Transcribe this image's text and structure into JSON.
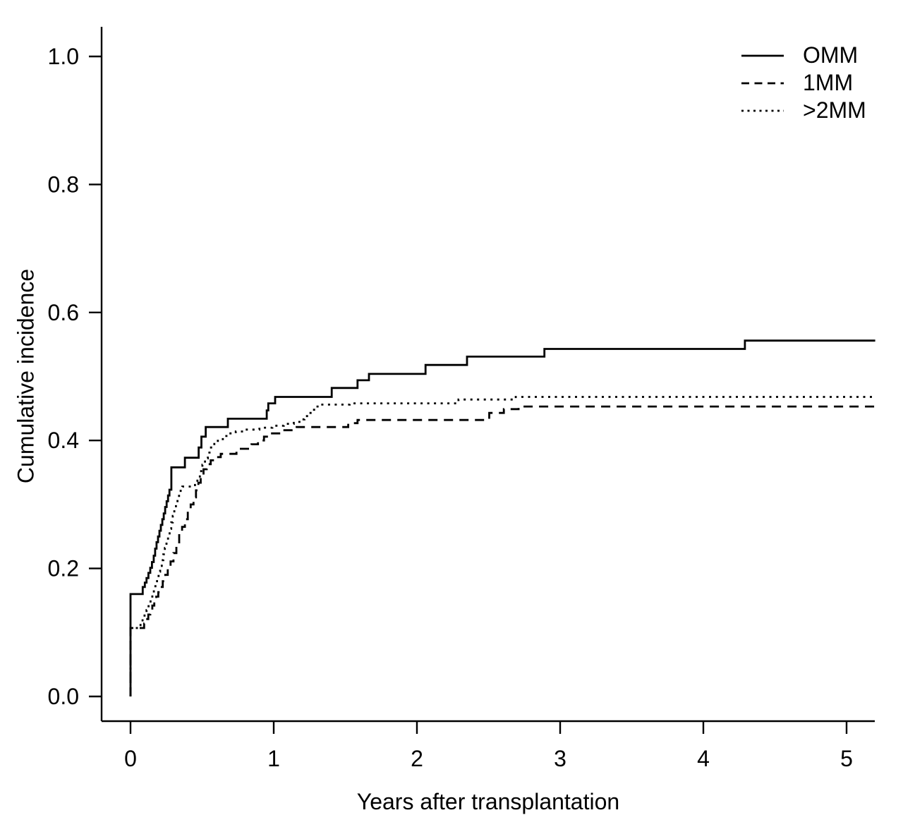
{
  "chart_data": {
    "type": "line",
    "subtype": "step",
    "title": "",
    "xlabel": "Years after transplantation",
    "ylabel": "Cumulative incidence",
    "xlim": [
      0,
      5.2
    ],
    "ylim": [
      0,
      1.0
    ],
    "xticks": [
      "0",
      "1",
      "2",
      "3",
      "4",
      "5"
    ],
    "yticks": [
      "0.0",
      "0.2",
      "0.4",
      "0.6",
      "0.8",
      "1.0"
    ],
    "grid": false,
    "background_color": "#ffffff",
    "line_color": "#000000",
    "legend": {
      "position": "top-right",
      "entries": [
        {
          "label": "OMM",
          "line_style": "solid"
        },
        {
          "label": "1MM",
          "line_style": "dashed"
        },
        {
          "label": ">2MM",
          "line_style": "dotted"
        }
      ]
    },
    "series": [
      {
        "name": "OMM",
        "line_style": "solid",
        "color": "#000000",
        "points": [
          [
            0,
            0
          ],
          [
            0,
            0.16
          ],
          [
            0.085,
            0.171
          ],
          [
            0.1,
            0.178
          ],
          [
            0.112,
            0.185
          ],
          [
            0.125,
            0.193
          ],
          [
            0.138,
            0.201
          ],
          [
            0.15,
            0.21
          ],
          [
            0.162,
            0.22
          ],
          [
            0.172,
            0.231
          ],
          [
            0.182,
            0.241
          ],
          [
            0.192,
            0.25
          ],
          [
            0.202,
            0.259
          ],
          [
            0.212,
            0.268
          ],
          [
            0.222,
            0.277
          ],
          [
            0.232,
            0.286
          ],
          [
            0.242,
            0.296
          ],
          [
            0.252,
            0.305
          ],
          [
            0.262,
            0.314
          ],
          [
            0.272,
            0.323
          ],
          [
            0.285,
            0.358
          ],
          [
            0.38,
            0.373
          ],
          [
            0.476,
            0.389
          ],
          [
            0.495,
            0.406
          ],
          [
            0.525,
            0.421
          ],
          [
            0.68,
            0.434
          ],
          [
            0.951,
            0.447
          ],
          [
            0.962,
            0.458
          ],
          [
            1.01,
            0.468
          ],
          [
            1.405,
            0.482
          ],
          [
            1.585,
            0.494
          ],
          [
            1.665,
            0.504
          ],
          [
            2.06,
            0.518
          ],
          [
            2.35,
            0.531
          ],
          [
            2.89,
            0.543
          ],
          [
            4.29,
            0.556
          ],
          [
            5.2,
            0.556
          ]
        ]
      },
      {
        "name": "1MM",
        "line_style": "dashed",
        "color": "#000000",
        "points": [
          [
            0,
            0
          ],
          [
            0,
            0.107
          ],
          [
            0.095,
            0.114
          ],
          [
            0.11,
            0.121
          ],
          [
            0.124,
            0.128
          ],
          [
            0.138,
            0.135
          ],
          [
            0.152,
            0.142
          ],
          [
            0.166,
            0.149
          ],
          [
            0.18,
            0.156
          ],
          [
            0.194,
            0.163
          ],
          [
            0.208,
            0.171
          ],
          [
            0.225,
            0.18
          ],
          [
            0.243,
            0.19
          ],
          [
            0.26,
            0.2
          ],
          [
            0.28,
            0.211
          ],
          [
            0.3,
            0.224
          ],
          [
            0.32,
            0.238
          ],
          [
            0.34,
            0.252
          ],
          [
            0.36,
            0.265
          ],
          [
            0.38,
            0.277
          ],
          [
            0.4,
            0.289
          ],
          [
            0.42,
            0.3
          ],
          [
            0.44,
            0.311
          ],
          [
            0.457,
            0.322
          ],
          [
            0.474,
            0.334
          ],
          [
            0.49,
            0.345
          ],
          [
            0.51,
            0.355
          ],
          [
            0.532,
            0.363
          ],
          [
            0.56,
            0.369
          ],
          [
            0.59,
            0.374
          ],
          [
            0.63,
            0.379
          ],
          [
            0.74,
            0.387
          ],
          [
            0.845,
            0.394
          ],
          [
            0.89,
            0.4
          ],
          [
            0.932,
            0.406
          ],
          [
            0.972,
            0.411
          ],
          [
            1.05,
            0.416
          ],
          [
            1.16,
            0.421
          ],
          [
            1.52,
            0.427
          ],
          [
            1.585,
            0.432
          ],
          [
            2.505,
            0.443
          ],
          [
            2.607,
            0.449
          ],
          [
            2.71,
            0.453
          ],
          [
            5.2,
            0.453
          ]
        ]
      },
      {
        "name": ">2MM",
        "line_style": "dotted",
        "color": "#000000",
        "points": [
          [
            0,
            0
          ],
          [
            0,
            0.107
          ],
          [
            0.07,
            0.114
          ],
          [
            0.084,
            0.121
          ],
          [
            0.098,
            0.128
          ],
          [
            0.112,
            0.135
          ],
          [
            0.126,
            0.143
          ],
          [
            0.14,
            0.151
          ],
          [
            0.152,
            0.159
          ],
          [
            0.163,
            0.168
          ],
          [
            0.174,
            0.177
          ],
          [
            0.185,
            0.186
          ],
          [
            0.196,
            0.195
          ],
          [
            0.207,
            0.204
          ],
          [
            0.218,
            0.213
          ],
          [
            0.229,
            0.222
          ],
          [
            0.24,
            0.232
          ],
          [
            0.251,
            0.242
          ],
          [
            0.262,
            0.252
          ],
          [
            0.273,
            0.262
          ],
          [
            0.284,
            0.272
          ],
          [
            0.295,
            0.282
          ],
          [
            0.306,
            0.292
          ],
          [
            0.317,
            0.301
          ],
          [
            0.328,
            0.309
          ],
          [
            0.339,
            0.317
          ],
          [
            0.35,
            0.323
          ],
          [
            0.362,
            0.328
          ],
          [
            0.45,
            0.333
          ],
          [
            0.467,
            0.342
          ],
          [
            0.484,
            0.352
          ],
          [
            0.502,
            0.362
          ],
          [
            0.52,
            0.372
          ],
          [
            0.54,
            0.381
          ],
          [
            0.562,
            0.389
          ],
          [
            0.585,
            0.396
          ],
          [
            0.61,
            0.402
          ],
          [
            0.645,
            0.407
          ],
          [
            0.685,
            0.411
          ],
          [
            0.735,
            0.414
          ],
          [
            0.79,
            0.417
          ],
          [
            0.9,
            0.42
          ],
          [
            0.99,
            0.423
          ],
          [
            1.07,
            0.426
          ],
          [
            1.14,
            0.429
          ],
          [
            1.19,
            0.433
          ],
          [
            1.215,
            0.438
          ],
          [
            1.24,
            0.443
          ],
          [
            1.265,
            0.448
          ],
          [
            1.29,
            0.453
          ],
          [
            1.32,
            0.456
          ],
          [
            1.53,
            0.458
          ],
          [
            2.29,
            0.464
          ],
          [
            2.69,
            0.468
          ],
          [
            5.2,
            0.468
          ]
        ]
      }
    ]
  }
}
